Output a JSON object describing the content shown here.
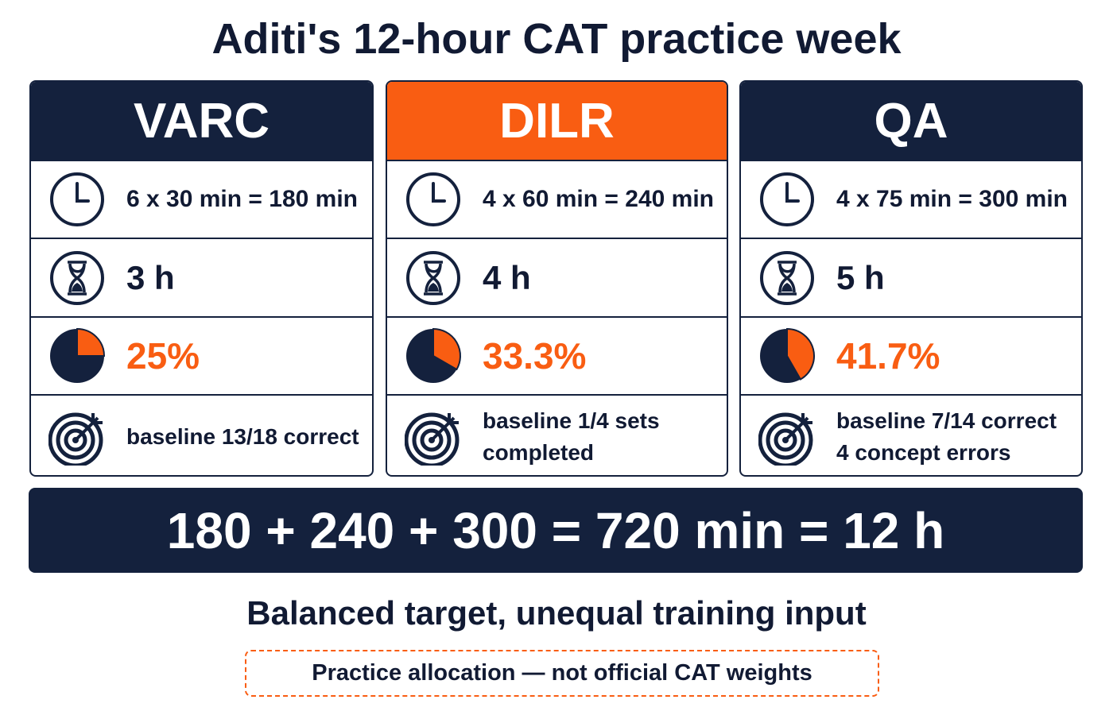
{
  "header": {
    "title": "Aditi's 12-hour CAT practice week"
  },
  "sections": [
    {
      "name": "VARC",
      "schedule": "6 x 30 min = 180 min",
      "hours": "3 h",
      "share": {
        "value": 25,
        "label": "25%"
      },
      "baseline": [
        "baseline 13/18 correct"
      ]
    },
    {
      "name": "DILR",
      "schedule": "4 x 60 min = 240 min",
      "hours": "4 h",
      "share": {
        "value": 33.3,
        "label": "33.3%"
      },
      "baseline": [
        "baseline 1/4 sets completed"
      ]
    },
    {
      "name": "QA",
      "schedule": "4 x 75 min = 300 min",
      "hours": "5 h",
      "share": {
        "value": 41.7,
        "label": "41.7%"
      },
      "baseline": [
        "baseline 7/14 correct",
        "4 concept errors"
      ]
    }
  ],
  "total": "180 + 240 + 300 = 720 min = 12 h",
  "subtitle": "Balanced target, unequal training input",
  "note": "Practice allocation — not official CAT weights"
}
